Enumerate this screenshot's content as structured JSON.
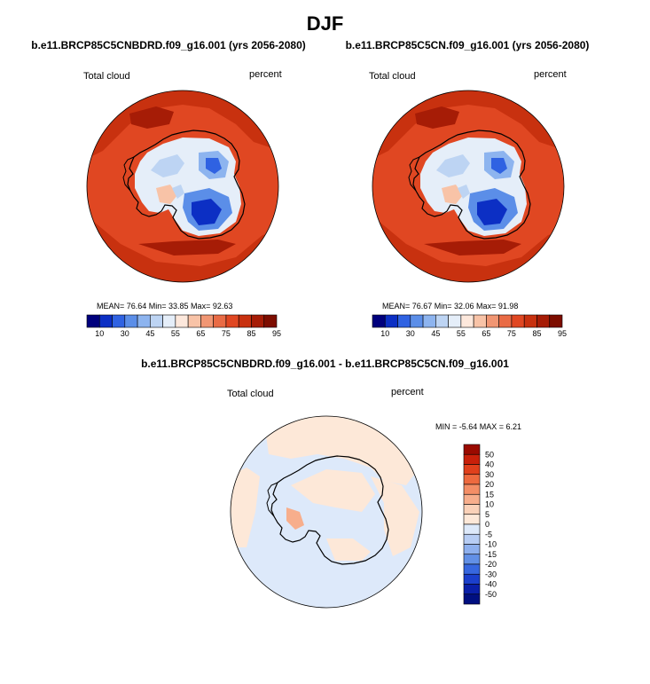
{
  "figure": {
    "season": "DJF"
  },
  "panels": {
    "left": {
      "case": "b.e11.BRCP85C5CNBDRD.f09_g16.001 (yrs 2056-2080)",
      "variable": "Total cloud",
      "units": "percent",
      "stats": "MEAN=  76.64  Min=  33.85  Max=  92.63"
    },
    "right": {
      "case": "b.e11.BRCP85C5CN.f09_g16.001 (yrs 2056-2080)",
      "variable": "Total cloud",
      "units": "percent",
      "stats": "MEAN=  76.67  Min=  32.06  Max=  91.98"
    },
    "diff": {
      "case": "b.e11.BRCP85C5CNBDRD.f09_g16.001 - b.e11.BRCP85C5CN.f09_g16.001",
      "variable": "Total cloud",
      "units": "percent",
      "stats": "MIN =  -5.64 MAX =   6.21"
    }
  },
  "chart_data": [
    {
      "type": "heatmap",
      "title": "b.e11.BRCP85C5CNBDRD.f09_g16.001 (yrs 2056-2080)",
      "variable": "Total cloud",
      "units": "percent",
      "projection": "south polar stereographic",
      "mean": 76.64,
      "min": 33.85,
      "max": 92.63,
      "colorbar_levels": [
        "10",
        "30",
        "45",
        "55",
        "65",
        "75",
        "85",
        "95"
      ],
      "colorbar_colors": [
        "#00007d",
        "#0c2fc4",
        "#2f62e2",
        "#5b8ee8",
        "#8db4ef",
        "#bdd4f3",
        "#e5eef9",
        "#fde8dc",
        "#f8c3a7",
        "#f19673",
        "#e96b45",
        "#e04722",
        "#c8310f",
        "#a61c06",
        "#7d0d00"
      ]
    },
    {
      "type": "heatmap",
      "title": "b.e11.BRCP85C5CN.f09_g16.001 (yrs 2056-2080)",
      "variable": "Total cloud",
      "units": "percent",
      "projection": "south polar stereographic",
      "mean": 76.67,
      "min": 32.06,
      "max": 91.98,
      "colorbar_levels": [
        "10",
        "30",
        "45",
        "55",
        "65",
        "75",
        "85",
        "95"
      ],
      "colorbar_colors": [
        "#00007d",
        "#0c2fc4",
        "#2f62e2",
        "#5b8ee8",
        "#8db4ef",
        "#bdd4f3",
        "#e5eef9",
        "#fde8dc",
        "#f8c3a7",
        "#f19673",
        "#e96b45",
        "#e04722",
        "#c8310f",
        "#a61c06",
        "#7d0d00"
      ]
    },
    {
      "type": "heatmap",
      "title": "b.e11.BRCP85C5CNBDRD.f09_g16.001 - b.e11.BRCP85C5CN.f09_g16.001",
      "variable": "Total cloud",
      "units": "percent",
      "projection": "south polar stereographic",
      "min": -5.64,
      "max": 6.21,
      "colorbar_levels": [
        "50",
        "40",
        "30",
        "20",
        "15",
        "10",
        "5",
        "0",
        "-5",
        "-10",
        "-15",
        "-20",
        "-30",
        "-40",
        "-50"
      ],
      "colorbar_colors": [
        "#9a0a00",
        "#c8200a",
        "#e0401c",
        "#ee6a3f",
        "#f48e66",
        "#f7ae8c",
        "#fad1b8",
        "#fde8d8",
        "#dde9fa",
        "#b7cdf4",
        "#8eb0ee",
        "#6290e6",
        "#3767df",
        "#1b3fcc",
        "#0a1fa8",
        "#000f80"
      ]
    }
  ]
}
